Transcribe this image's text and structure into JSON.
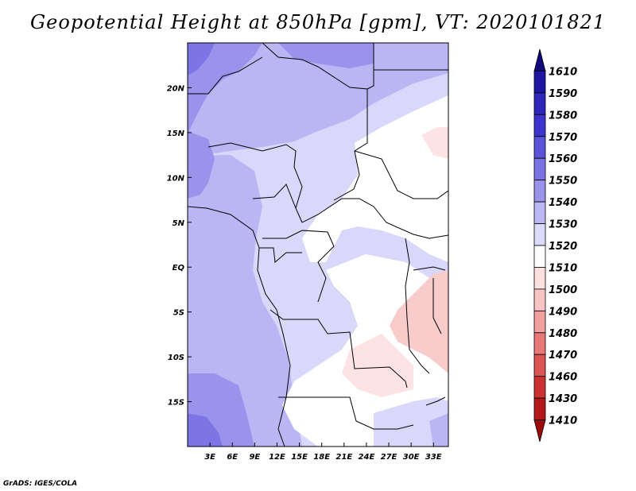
{
  "title": "Geopotential Height at 850hPa [gpm], VT: 2020101821",
  "footer": "GrADS: IGES/COLA",
  "lat_labels": [
    "20N",
    "15N",
    "10N",
    "5N",
    "EQ",
    "5S",
    "10S",
    "15S"
  ],
  "lat_values": [
    20,
    15,
    10,
    5,
    0,
    -5,
    -10,
    -15
  ],
  "lon_labels": [
    "3E",
    "6E",
    "9E",
    "12E",
    "15E",
    "18E",
    "21E",
    "24E",
    "27E",
    "30E",
    "33E"
  ],
  "lon_values": [
    3,
    6,
    9,
    12,
    15,
    18,
    21,
    24,
    27,
    30,
    33
  ],
  "extent": {
    "lon_min": 0,
    "lon_max": 35,
    "lat_min": -20,
    "lat_max": 25
  },
  "colorbar": {
    "labels": [
      "1610",
      "1590",
      "1580",
      "1570",
      "1560",
      "1550",
      "1540",
      "1530",
      "1520",
      "1510",
      "1500",
      "1490",
      "1480",
      "1470",
      "1460",
      "1430",
      "1410"
    ],
    "colors": [
      "#120a7a",
      "#1e16a0",
      "#2e26b8",
      "#3c34cc",
      "#5a52d8",
      "#7a72e4",
      "#9a93ec",
      "#bcb8f4",
      "#dcdbfa",
      "#ffffff",
      "#fde0e0",
      "#f9c4c4",
      "#f2a0a0",
      "#e87878",
      "#dc5454",
      "#cc3232",
      "#b41818",
      "#9c0a0a"
    ]
  },
  "colors": {
    "dark_blue": "#7b75e5",
    "mid_blue": "#bab6f4",
    "light_blue": "#d9d8fa",
    "pink_light": "#fde3e3",
    "pink": "#f9cccc",
    "border": "#000000"
  }
}
